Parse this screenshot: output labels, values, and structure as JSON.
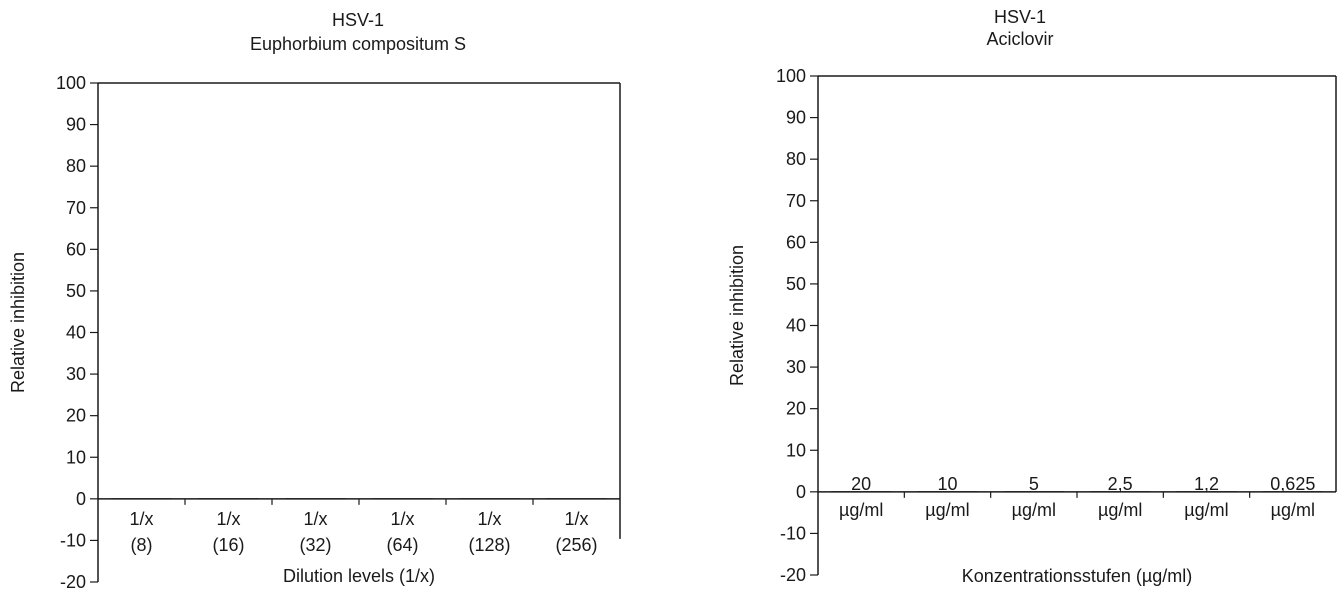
{
  "chart_data": [
    {
      "type": "bar",
      "title": "HSV-1",
      "subtitle": "Euphorbium compositum S",
      "xlabel": "Dilution levels (1/x)",
      "ylabel": "Relative inhibition",
      "ylim": [
        -20,
        100
      ],
      "yticks": [
        100,
        90,
        80,
        70,
        60,
        50,
        40,
        30,
        20,
        10,
        0,
        -10,
        -20
      ],
      "categories": [
        {
          "line1": "1/x",
          "line2": "(8)"
        },
        {
          "line1": "1/x",
          "line2": "(16)"
        },
        {
          "line1": "1/x",
          "line2": "(32)"
        },
        {
          "line1": "1/x",
          "line2": "(64)"
        },
        {
          "line1": "1/x",
          "line2": "(128)"
        },
        {
          "line1": "1/x",
          "line2": "(256)"
        }
      ],
      "values": [
        0,
        0,
        0,
        0,
        0,
        0
      ],
      "grid": false
    },
    {
      "type": "bar",
      "title": "HSV-1",
      "subtitle": "Aciclovir",
      "xlabel": "Konzentrationsstufen (µg/ml)",
      "ylabel": "Relative inhibition",
      "ylim": [
        -20,
        100
      ],
      "yticks": [
        100,
        90,
        80,
        70,
        60,
        50,
        40,
        30,
        20,
        10,
        0,
        -10,
        -20
      ],
      "categories": [
        {
          "line1": "20",
          "line2": "µg/ml"
        },
        {
          "line1": "10",
          "line2": "µg/ml"
        },
        {
          "line1": "5",
          "line2": "µg/ml"
        },
        {
          "line1": "2,5",
          "line2": "µg/ml"
        },
        {
          "line1": "1,2",
          "line2": "µg/ml"
        },
        {
          "line1": "0,625",
          "line2": "µg/ml"
        }
      ],
      "values": [
        0,
        0,
        0,
        0,
        0,
        0
      ],
      "grid": false
    }
  ]
}
